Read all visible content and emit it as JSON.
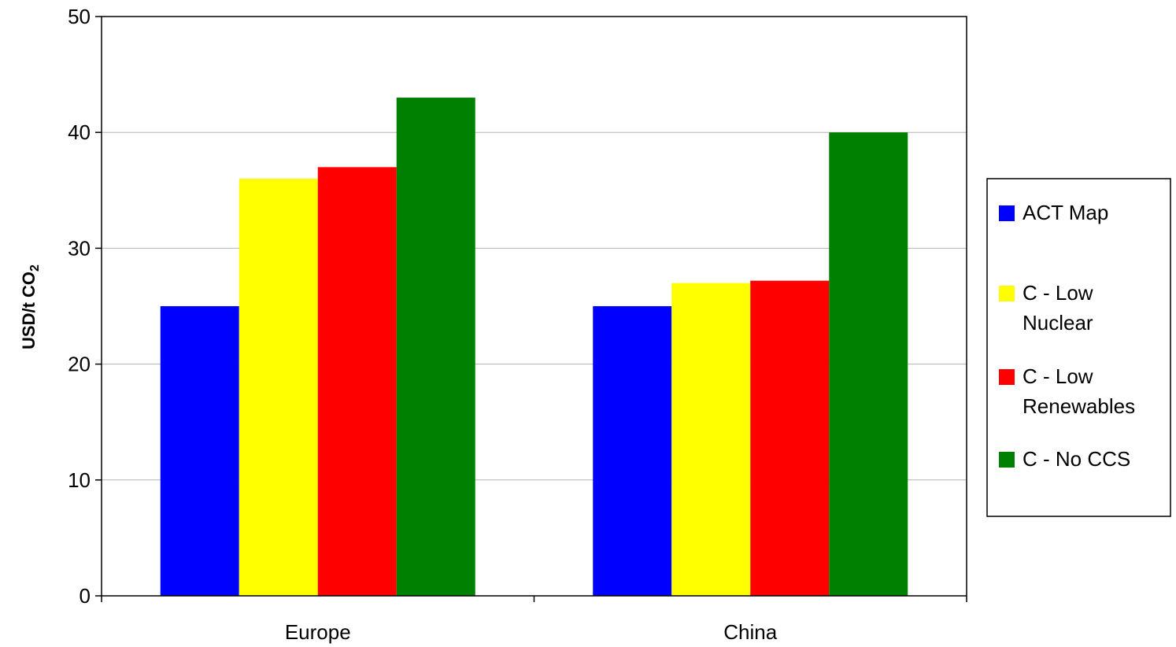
{
  "chart_data": {
    "type": "bar",
    "categories": [
      "Europe",
      "China"
    ],
    "series": [
      {
        "name": "ACT Map",
        "values": [
          25,
          25
        ],
        "color": "#0000ff"
      },
      {
        "name": "C - Low Nuclear",
        "values": [
          36,
          27
        ],
        "color": "#ffff00"
      },
      {
        "name": "C - Low Renewables",
        "values": [
          37,
          27.2
        ],
        "color": "#ff0000"
      },
      {
        "name": "C - No CCS",
        "values": [
          43,
          40
        ],
        "color": "#008000"
      }
    ],
    "ylabel": "USD/t CO",
    "ylabel_subscript": "2",
    "ylim": [
      0,
      50
    ],
    "yticks": [
      0,
      10,
      20,
      30,
      40,
      50
    ],
    "grid": true,
    "legend_position": "right",
    "legend_lines": [
      [
        "ACT Map"
      ],
      [
        "C - Low",
        "Nuclear"
      ],
      [
        "C - Low",
        "Renewables"
      ],
      [
        "C - No CCS"
      ]
    ]
  }
}
